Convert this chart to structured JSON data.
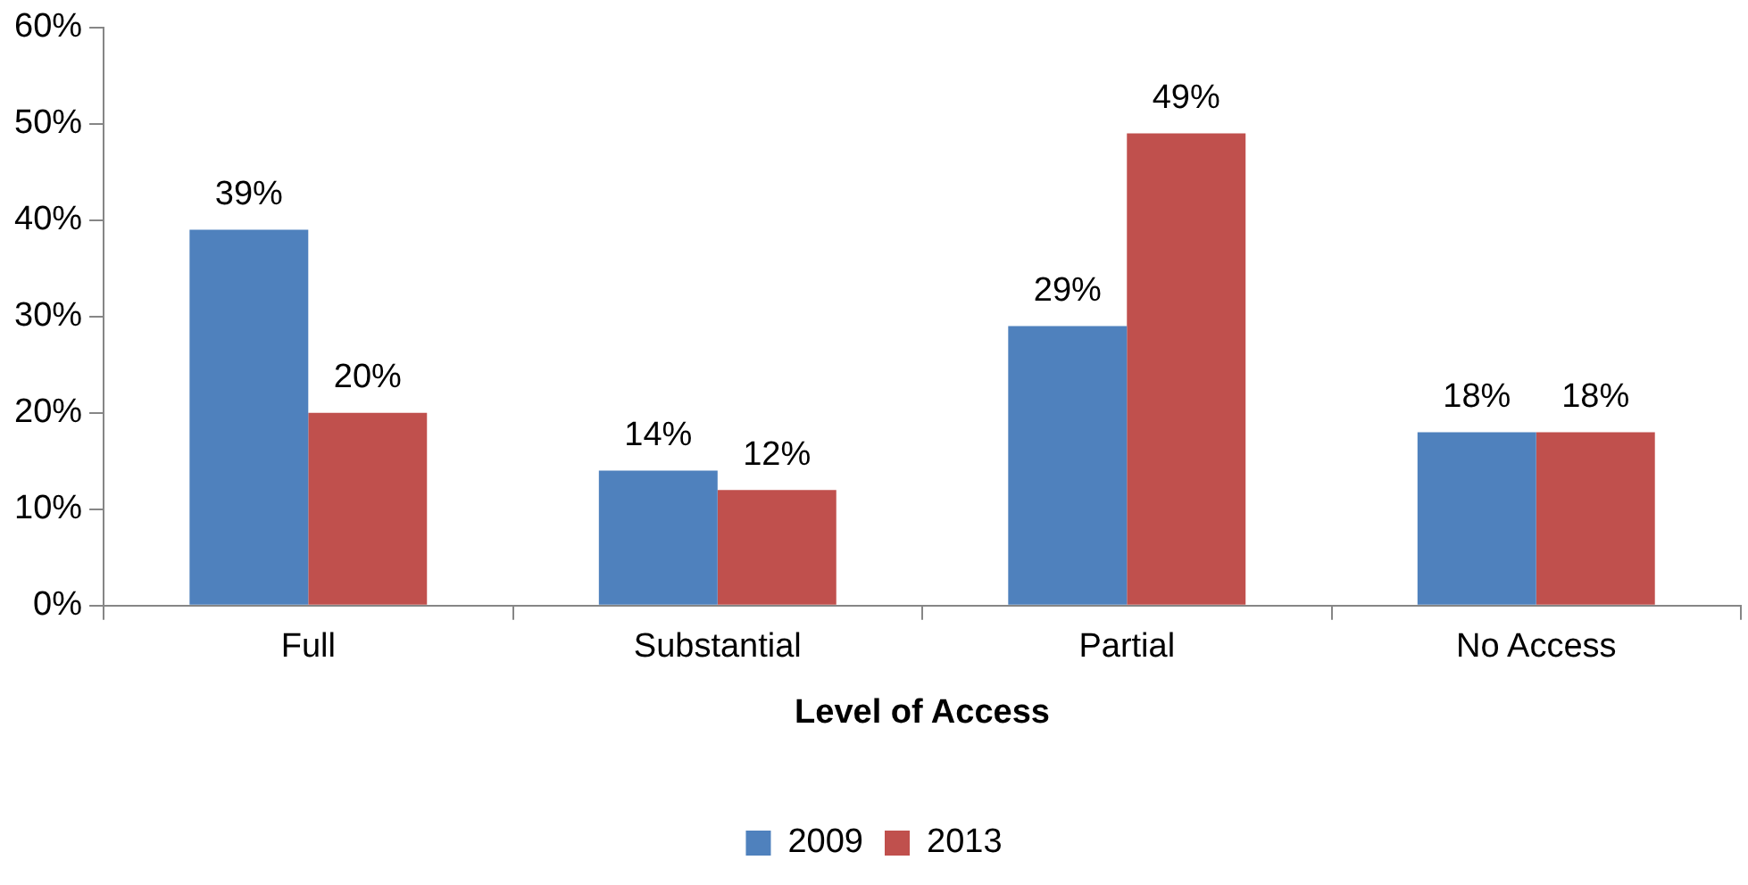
{
  "chart_data": {
    "type": "bar",
    "xlabel": "Level of Access",
    "categories": [
      "Full",
      "Substantial",
      "Partial",
      "No Access"
    ],
    "series": [
      {
        "name": "2009",
        "color": "#4f81bd",
        "values": [
          39,
          14,
          29,
          18
        ],
        "value_labels": [
          "39%",
          "14%",
          "29%",
          "18%"
        ]
      },
      {
        "name": "2013",
        "color": "#c0504d",
        "values": [
          20,
          12,
          49,
          18
        ],
        "value_labels": [
          "20%",
          "12%",
          "49%",
          "18%"
        ]
      }
    ],
    "ylim": [
      0,
      60
    ],
    "yticks": [
      {
        "value": 0,
        "label": "0%"
      },
      {
        "value": 10,
        "label": "10%"
      },
      {
        "value": 20,
        "label": "20%"
      },
      {
        "value": 30,
        "label": "30%"
      },
      {
        "value": 40,
        "label": "40%"
      },
      {
        "value": 50,
        "label": "50%"
      },
      {
        "value": 60,
        "label": "60%"
      }
    ],
    "grid": false,
    "legend": "bottom"
  }
}
